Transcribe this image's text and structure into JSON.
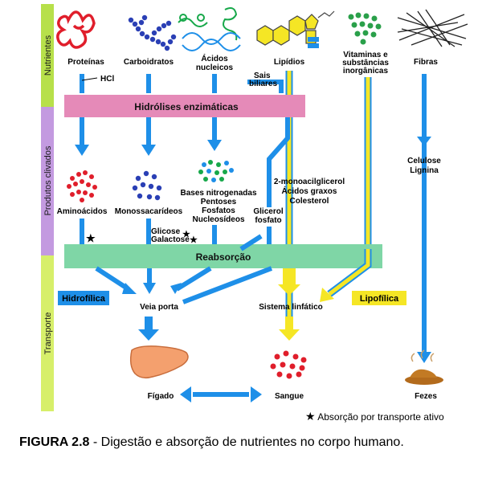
{
  "sections": {
    "nutrientes": "Nutrientes",
    "produtos": "Produtos clivados",
    "transporte": "Transporte"
  },
  "nutrients": {
    "proteinas": "Proteínas",
    "carboidratos": "Carboidratos",
    "acidos_l1": "Ácidos",
    "acidos_l2": "nucleicos",
    "lipidios": "Lipídios",
    "vit_l1": "Vitaminas e",
    "vit_l2": "substâncias",
    "vit_l3": "inorgânicas",
    "fibras": "Fibras"
  },
  "labels": {
    "hcl": "HCl",
    "sais_l1": "Sais",
    "sais_l2": "biliares",
    "hidrolises": "Hidrólises enzimáticas",
    "aminoacidos": "Aminoácidos",
    "monossacarideos": "Monossacarídeos",
    "bases": "Bases nitrogenadas",
    "pentoses": "Pentoses",
    "fosfatos": "Fosfatos",
    "nucleosideos": "Nucleosídeos",
    "glicerol_l1": "Glicerol",
    "glicerol_l2": "fosfato",
    "mono_acil": "2-monoacilglicerol",
    "acidos_graxos": "Ácidos graxos",
    "colesterol": "Colesterol",
    "celulose": "Celulose",
    "lignina": "Lignina",
    "glicose": "Glicose",
    "galactose": "Galactose",
    "star": "★",
    "reabsorcao": "Reabsorção",
    "hidrofilica": "Hidrofílica",
    "lipofilica": "Lipofílica",
    "veia_porta": "Veia porta",
    "sistema_linfatico": "Sistema linfático",
    "figado": "Fígado",
    "sangue": "Sangue",
    "fezes": "Fezes"
  },
  "legend": "Absorção por transporte ativo",
  "caption": {
    "label": "FIGURA 2.8",
    "text": " - Digestão e absorção de nutrientes no corpo humano."
  },
  "colors": {
    "blue_arrow": "#1e8fe8",
    "yellow_arrow": "#f5e625",
    "hidrolises_bar": "#e58ab8",
    "reabsorcao_bar": "#7fd6a6",
    "section_green": "#b7e04a",
    "section_purple": "#c39ae0",
    "section_lime": "#d7ef6a",
    "hidrofilica_box": "#1e8fe8",
    "lipofilica_box": "#f5e625"
  }
}
